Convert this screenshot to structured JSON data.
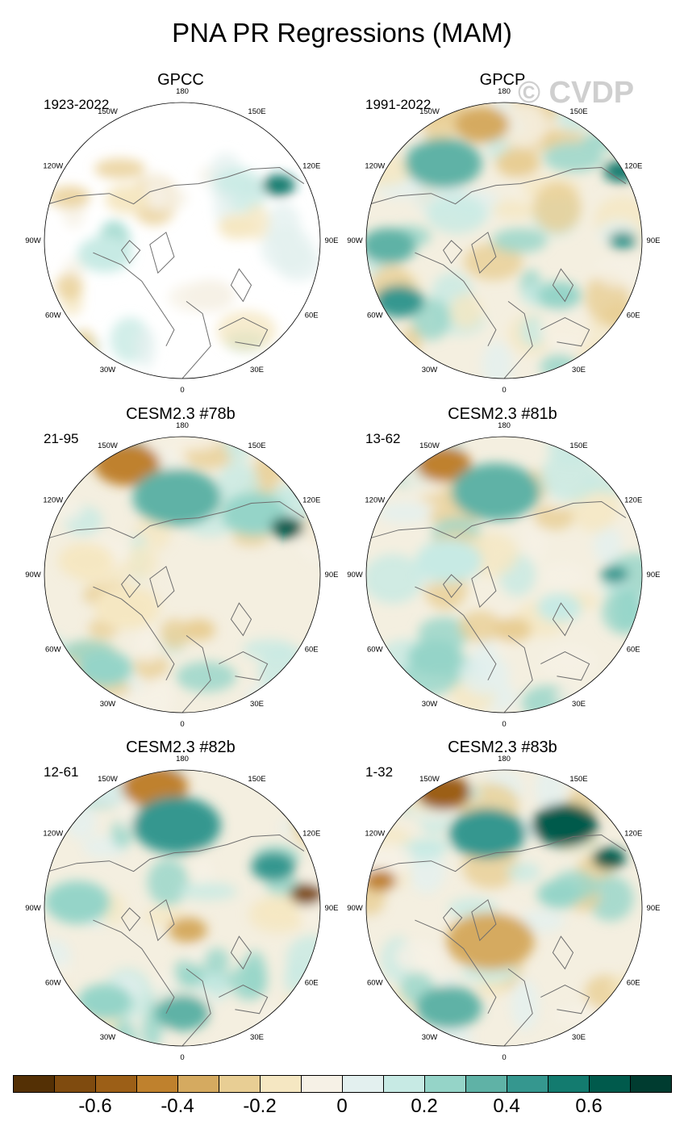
{
  "page_title": "PNA PR Regressions (MAM)",
  "watermark": "© CVDP",
  "chart_data": {
    "type": "heatmap",
    "title": "PNA PR Regressions (MAM)",
    "projection": "north polar stereographic",
    "longitude_labels": [
      "180",
      "150E",
      "120E",
      "90E",
      "60E",
      "30E",
      "0",
      "30W",
      "60W",
      "90W",
      "120W",
      "150W"
    ],
    "panels": [
      {
        "title": "GPCC",
        "period": "1923-2022"
      },
      {
        "title": "GPCP",
        "period": "1991-2022"
      },
      {
        "title": "CESM2.3 #78b",
        "period": "21-95"
      },
      {
        "title": "CESM2.3 #81b",
        "period": "13-62"
      },
      {
        "title": "CESM2.3 #82b",
        "period": "12-61"
      },
      {
        "title": "CESM2.3 #83b",
        "period": "1-32"
      }
    ],
    "colorbar": {
      "levels": [
        -0.7,
        -0.6,
        -0.5,
        -0.4,
        -0.3,
        -0.2,
        -0.1,
        0,
        0.1,
        0.2,
        0.3,
        0.4,
        0.5,
        0.6,
        0.7
      ],
      "tick_labels": [
        "-0.6",
        "-0.4",
        "-0.2",
        "0",
        "0.2",
        "0.4",
        "0.6"
      ],
      "colors": [
        "#543005",
        "#7f4b0f",
        "#9c5f17",
        "#bf812d",
        "#d5aa60",
        "#e8ce94",
        "#f5e7c2",
        "#f6f1e6",
        "#e3f0ef",
        "#c7eae4",
        "#95d4c8",
        "#5fb2a6",
        "#35978f",
        "#137b6f",
        "#005a4c",
        "#003c30"
      ]
    }
  }
}
